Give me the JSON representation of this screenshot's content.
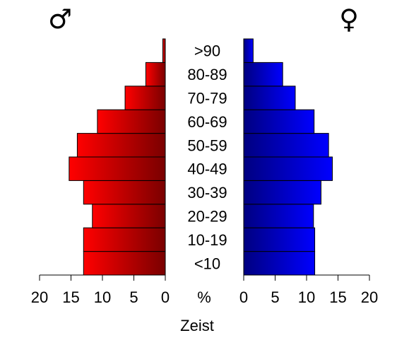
{
  "chart_data": {
    "type": "bar",
    "orientation": "horizontal",
    "layout": "population-pyramid",
    "categories": [
      "<10",
      "10-19",
      "20-29",
      "30-39",
      "40-49",
      "50-59",
      "60-69",
      "70-79",
      "80-89",
      ">90"
    ],
    "series": [
      {
        "values": [
          13.0,
          13.0,
          11.6,
          13.0,
          15.3,
          14.0,
          10.8,
          6.4,
          3.1,
          0.4
        ],
        "color_start": "#ff0000",
        "color_end": "#7a0000"
      },
      {
        "values": [
          11.3,
          11.3,
          11.1,
          12.3,
          14.1,
          13.5,
          11.2,
          8.2,
          6.2,
          1.5
        ],
        "color_start": "#000080",
        "color_end": "#0000ff"
      }
    ],
    "symbols": {
      "male": "♂",
      "female": "♀"
    },
    "axis_range": [
      0,
      20
    ],
    "ticks": [
      "20",
      "15",
      "10",
      "5",
      "0"
    ],
    "ticks_right": [
      "0",
      "5",
      "10",
      "15",
      "20"
    ],
    "center_unit_label": "%",
    "xlabel": "Zeist",
    "grid": false,
    "legend": "none"
  }
}
